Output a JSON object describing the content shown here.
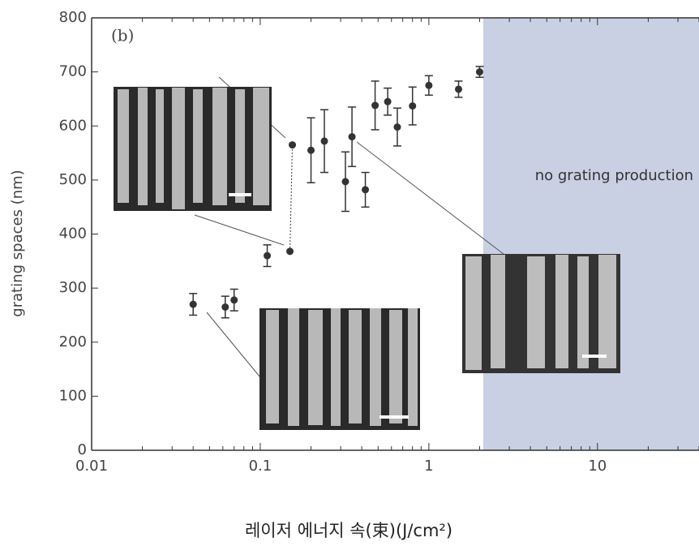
{
  "chart_data": {
    "type": "scatter",
    "panel_label": "(b)",
    "y_label": "grating spaces (nm)",
    "x_label": "레이저 에너지 속(束)(J/cm²)",
    "x_log": true,
    "xlim": [
      0.01,
      40
    ],
    "xticks": [
      0.01,
      0.1,
      1,
      10
    ],
    "ylim": [
      0,
      800
    ],
    "yticks": [
      0,
      100,
      200,
      300,
      400,
      500,
      600,
      700,
      800
    ],
    "shade_region": {
      "x0": 2.1,
      "color": "#c9d0e3",
      "label": "no grating production"
    },
    "series": [
      {
        "color": "#333333",
        "x": [
          0.04,
          0.062,
          0.07,
          0.11,
          0.15,
          0.155,
          0.2,
          0.24,
          0.32,
          0.35,
          0.42,
          0.48,
          0.57,
          0.65,
          0.8,
          1.0,
          1.5,
          2.0
        ],
        "values": [
          270,
          265,
          278,
          360,
          368,
          565,
          555,
          572,
          497,
          580,
          482,
          638,
          645,
          598,
          637,
          675,
          668,
          700
        ],
        "errors": [
          20,
          20,
          20,
          20,
          0,
          0,
          60,
          58,
          55,
          55,
          32,
          45,
          25,
          35,
          35,
          18,
          15,
          10
        ]
      }
    ]
  }
}
